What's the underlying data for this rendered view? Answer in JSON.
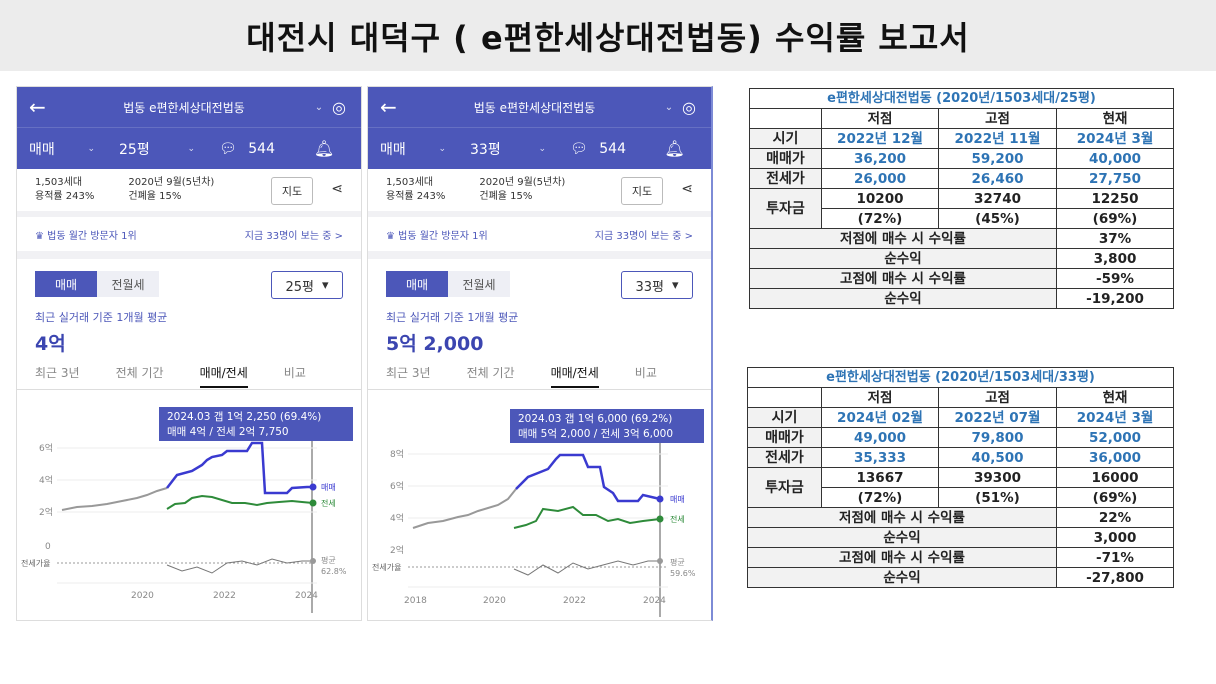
{
  "title": "대전시 대덕구 ( e편한세상대전법동) 수익률 보고서",
  "phones": [
    {
      "header_title": "법동 e편한세상대전법동",
      "trade": "매매",
      "pyeong": "25평",
      "comments": "544",
      "info": {
        "households": "1,503세대",
        "far": "용적률 243%",
        "built": "2020년 9월(5년차)",
        "bcr": "건폐율 15%",
        "map_btn": "지도"
      },
      "visitor_left": "법동 월간 방문자 1위",
      "visitor_right": "지금 33명이 보는 중 >",
      "seg_on": "매매",
      "seg_off": "전월세",
      "select": "25평",
      "avg_label": "최근 실거래 기준 1개월 평균",
      "avg_value": "4억",
      "period_tabs": [
        "최근 3년",
        "전체 기간",
        "매매/전세",
        "비교"
      ],
      "tooltip_line1": "2024.03  갭 1억 2,250 (69.4%)",
      "tooltip_line2": "매매 4억 / 전세 2억 7,750",
      "y_ticks": [
        "6억",
        "4억",
        "2억",
        "0"
      ],
      "x_ticks": [
        "2020",
        "2022",
        "2024"
      ],
      "legend_sale": "매매",
      "legend_jeonse": "전세",
      "ratio_label": "전세가율",
      "ratio_avg": "평균",
      "ratio_value": "62.8%"
    },
    {
      "header_title": "법동 e편한세상대전법동",
      "trade": "매매",
      "pyeong": "33평",
      "comments": "544",
      "info": {
        "households": "1,503세대",
        "far": "용적률 243%",
        "built": "2020년 9월(5년차)",
        "bcr": "건폐율 15%",
        "map_btn": "지도"
      },
      "visitor_left": "법동 월간 방문자 1위",
      "visitor_right": "지금 33명이 보는 중 >",
      "seg_on": "매매",
      "seg_off": "전월세",
      "select": "33평",
      "avg_label": "최근 실거래 기준 1개월 평균",
      "avg_value": "5억 2,000",
      "period_tabs": [
        "최근 3년",
        "전체 기간",
        "매매/전세",
        "비교"
      ],
      "tooltip_line1": "2024.03  갭 1억 6,000 (69.2%)",
      "tooltip_line2": "매매 5억 2,000 / 전세 3억 6,000",
      "y_ticks": [
        "8억",
        "6억",
        "4억",
        "2억"
      ],
      "x_ticks": [
        "2018",
        "2020",
        "2022",
        "2024"
      ],
      "legend_sale": "매매",
      "legend_jeonse": "전세",
      "ratio_label": "전세가율",
      "ratio_avg": "평균",
      "ratio_value": "59.6%"
    }
  ],
  "tables": [
    {
      "caption": "e편한세상대전법동 (2020년/1503세대/25평)",
      "head": [
        "저점",
        "고점",
        "현재"
      ],
      "period_label": "시기",
      "periods": [
        "2022년 12월",
        "2022년 11월",
        "2024년 3월"
      ],
      "sale_label": "매매가",
      "sale": [
        "36,200",
        "59,200",
        "40,000"
      ],
      "jeonse_label": "전세가",
      "jeonse": [
        "26,000",
        "26,460",
        "27,750"
      ],
      "invest_label": "투자금",
      "invest": [
        "10200",
        "32740",
        "12250"
      ],
      "invest_pct": [
        "(72%)",
        "(45%)",
        "(69%)"
      ],
      "low_yield_label": "저점에 매수 시 수익률",
      "low_yield": "37%",
      "low_profit_label": "순수익",
      "low_profit": "3,800",
      "high_yield_label": "고점에 매수 시 수익률",
      "high_yield": "-59%",
      "high_profit_label": "순수익",
      "high_profit": "-19,200"
    },
    {
      "caption": "e편한세상대전법동 (2020년/1503세대/33평)",
      "head": [
        "저점",
        "고점",
        "현재"
      ],
      "period_label": "시기",
      "periods": [
        "2024년 02월",
        "2022년 07월",
        "2024년 3월"
      ],
      "sale_label": "매매가",
      "sale": [
        "49,000",
        "79,800",
        "52,000"
      ],
      "jeonse_label": "전세가",
      "jeonse": [
        "35,333",
        "40,500",
        "36,000"
      ],
      "invest_label": "투자금",
      "invest": [
        "13667",
        "39300",
        "16000"
      ],
      "invest_pct": [
        "(72%)",
        "(51%)",
        "(69%)"
      ],
      "low_yield_label": "저점에 매수 시 수익률",
      "low_yield": "22%",
      "low_profit_label": "순수익",
      "low_profit": "3,000",
      "high_yield_label": "고점에 매수 시 수익률",
      "high_yield": "-71%",
      "high_profit_label": "순수익",
      "high_profit": "-27,800"
    }
  ],
  "colors": {
    "header": "#4c57b9",
    "sale_line": "#3a3ad0",
    "jeonse_line": "#2e8b3a",
    "table_blue": "#2e74b5"
  }
}
